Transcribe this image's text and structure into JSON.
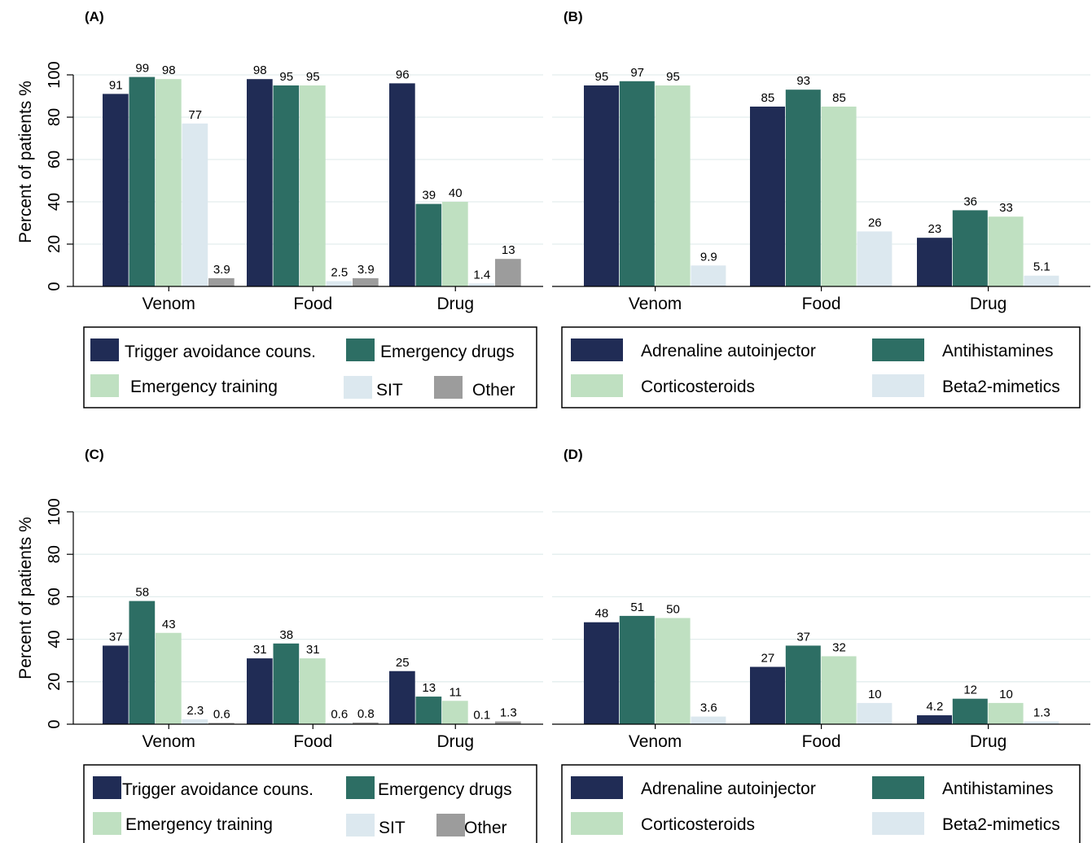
{
  "colors": {
    "navy": "#202c55",
    "teal": "#2d6e64",
    "light_green": "#bfe0c1",
    "pale_blue": "#dce8ef",
    "gray": "#9c9c9c",
    "grid": "#e3eeee"
  },
  "legends": {
    "measures": [
      {
        "label": "Trigger avoidance couns.",
        "color": "#202c55"
      },
      {
        "label": "Emergency drugs",
        "color": "#2d6e64"
      },
      {
        "label": "Emergency training",
        "color": "#bfe0c1"
      },
      {
        "label": "SIT",
        "color": "#dce8ef"
      },
      {
        "label": "Other",
        "color": "#9c9c9c"
      }
    ],
    "drugs": [
      {
        "label": "Adrenaline autoinjector",
        "color": "#202c55"
      },
      {
        "label": "Antihistamines",
        "color": "#2d6e64"
      },
      {
        "label": "Corticosteroids",
        "color": "#bfe0c1"
      },
      {
        "label": "Beta2-mimetics",
        "color": "#dce8ef"
      }
    ]
  },
  "chart_data": [
    {
      "type": "bar",
      "title": "(A)",
      "ylabel": "Percent of patients %",
      "ylim": [
        0,
        100
      ],
      "yticks": [
        0,
        20,
        40,
        60,
        80,
        100
      ],
      "grid": true,
      "categories": [
        "Venom",
        "Food",
        "Drug"
      ],
      "series": [
        {
          "name": "Trigger avoidance couns.",
          "values": [
            91,
            98,
            96
          ],
          "labels": [
            "91",
            "98",
            "96"
          ]
        },
        {
          "name": "Emergency drugs",
          "values": [
            99,
            95,
            39
          ],
          "labels": [
            "99",
            "95",
            "39"
          ]
        },
        {
          "name": "Emergency training",
          "values": [
            98,
            95,
            40
          ],
          "labels": [
            "98",
            "95",
            "40"
          ]
        },
        {
          "name": "SIT",
          "values": [
            77,
            2.5,
            1.4
          ],
          "labels": [
            "77",
            "2.5",
            "1.4"
          ]
        },
        {
          "name": "Other",
          "values": [
            3.9,
            3.9,
            13
          ],
          "labels": [
            "3.9",
            "3.9",
            "13"
          ]
        }
      ]
    },
    {
      "type": "bar",
      "title": "(B)",
      "ylim": [
        0,
        100
      ],
      "grid": true,
      "categories": [
        "Venom",
        "Food",
        "Drug"
      ],
      "series": [
        {
          "name": "Adrenaline autoinjector",
          "values": [
            95,
            85,
            23
          ],
          "labels": [
            "95",
            "85",
            "23"
          ]
        },
        {
          "name": "Antihistamines",
          "values": [
            97,
            93,
            36
          ],
          "labels": [
            "97",
            "93",
            "36"
          ]
        },
        {
          "name": "Corticosteroids",
          "values": [
            95,
            85,
            33
          ],
          "labels": [
            "95",
            "85",
            "33"
          ]
        },
        {
          "name": "Beta2-mimetics",
          "values": [
            9.9,
            26,
            5.1
          ],
          "labels": [
            "9.9",
            "26",
            "5.1"
          ]
        }
      ]
    },
    {
      "type": "bar",
      "title": "(C)",
      "ylabel": "Percent of patients %",
      "ylim": [
        0,
        100
      ],
      "yticks": [
        0,
        20,
        40,
        60,
        80,
        100
      ],
      "grid": true,
      "categories": [
        "Venom",
        "Food",
        "Drug"
      ],
      "series": [
        {
          "name": "Trigger avoidance couns.",
          "values": [
            37,
            31,
            25
          ],
          "labels": [
            "37",
            "31",
            "25"
          ]
        },
        {
          "name": "Emergency drugs",
          "values": [
            58,
            38,
            13
          ],
          "labels": [
            "58",
            "38",
            "13"
          ]
        },
        {
          "name": "Emergency training",
          "values": [
            43,
            31,
            11
          ],
          "labels": [
            "43",
            "31",
            "11"
          ]
        },
        {
          "name": "SIT",
          "values": [
            2.3,
            0.6,
            0.1
          ],
          "labels": [
            "2.3",
            "0.6",
            "0.1"
          ]
        },
        {
          "name": "Other",
          "values": [
            0.6,
            0.8,
            1.3
          ],
          "labels": [
            "0.6",
            "0.8",
            "1.3"
          ]
        }
      ]
    },
    {
      "type": "bar",
      "title": "(D)",
      "ylim": [
        0,
        100
      ],
      "grid": true,
      "categories": [
        "Venom",
        "Food",
        "Drug"
      ],
      "series": [
        {
          "name": "Adrenaline autoinjector",
          "values": [
            48,
            27,
            4.2
          ],
          "labels": [
            "48",
            "27",
            "4.2"
          ]
        },
        {
          "name": "Antihistamines",
          "values": [
            51,
            37,
            12
          ],
          "labels": [
            "51",
            "37",
            "12"
          ]
        },
        {
          "name": "Corticosteroids",
          "values": [
            50,
            32,
            10
          ],
          "labels": [
            "50",
            "32",
            "10"
          ]
        },
        {
          "name": "Beta2-mimetics",
          "values": [
            3.6,
            10,
            1.3
          ],
          "labels": [
            "3.6",
            "10",
            "1.3"
          ]
        }
      ]
    }
  ]
}
